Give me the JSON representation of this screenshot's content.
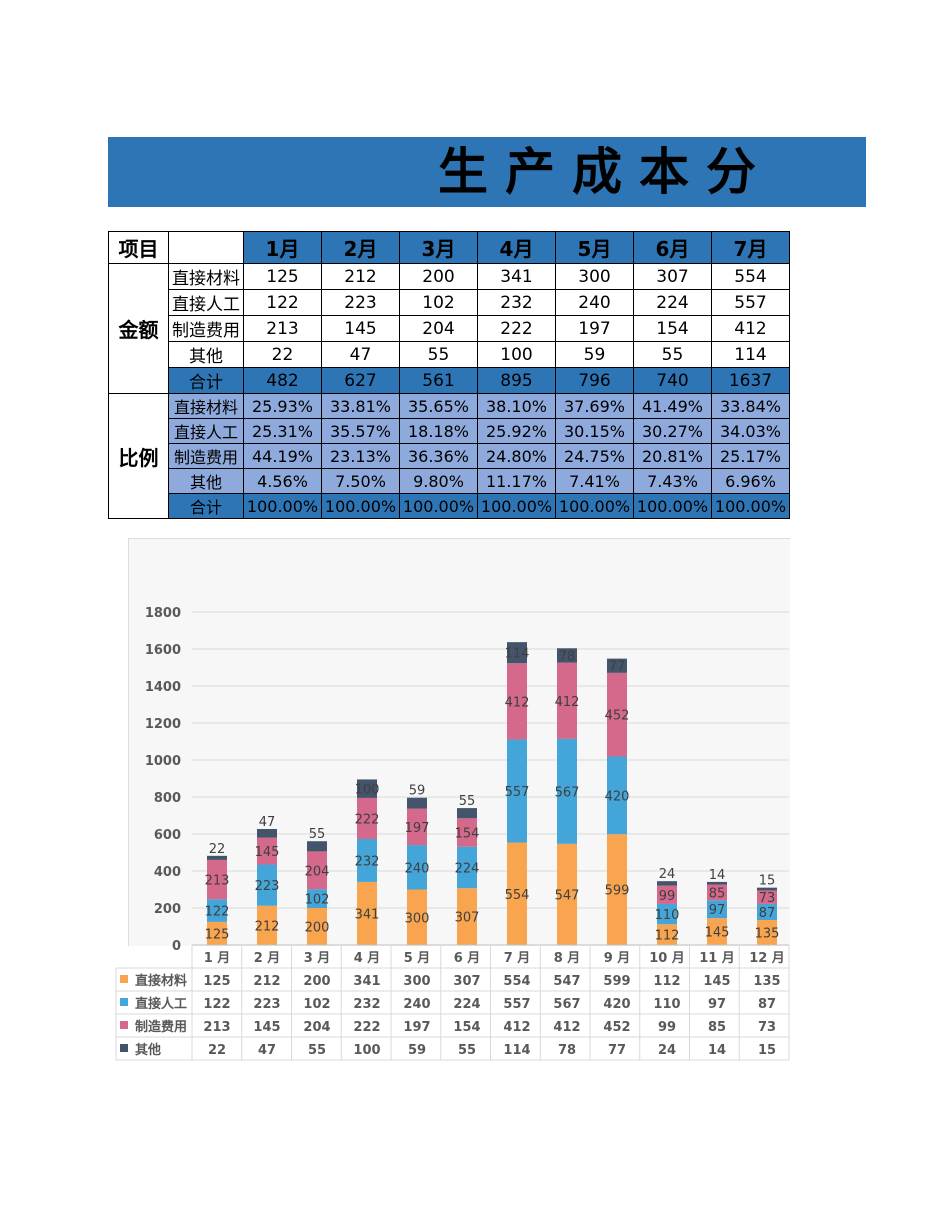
{
  "title": "生产成本分",
  "table": {
    "corner": "项目",
    "months": [
      "1月",
      "2月",
      "3月",
      "4月",
      "5月",
      "6月",
      "7月"
    ],
    "amount_group": "金额",
    "ratio_group": "比例",
    "amount_rows": [
      {
        "label": "直接材料",
        "values": [
          "125",
          "212",
          "200",
          "341",
          "300",
          "307",
          "554"
        ]
      },
      {
        "label": "直接人工",
        "values": [
          "122",
          "223",
          "102",
          "232",
          "240",
          "224",
          "557"
        ]
      },
      {
        "label": "制造费用",
        "values": [
          "213",
          "145",
          "204",
          "222",
          "197",
          "154",
          "412"
        ]
      },
      {
        "label": "其他",
        "values": [
          "22",
          "47",
          "55",
          "100",
          "59",
          "55",
          "114"
        ]
      },
      {
        "label": "合计",
        "values": [
          "482",
          "627",
          "561",
          "895",
          "796",
          "740",
          "1637"
        ]
      }
    ],
    "ratio_rows": [
      {
        "label": "直接材料",
        "values": [
          "25.93%",
          "33.81%",
          "35.65%",
          "38.10%",
          "37.69%",
          "41.49%",
          "33.84%"
        ]
      },
      {
        "label": "直接人工",
        "values": [
          "25.31%",
          "35.57%",
          "18.18%",
          "25.92%",
          "30.15%",
          "30.27%",
          "34.03%"
        ]
      },
      {
        "label": "制造费用",
        "values": [
          "44.19%",
          "23.13%",
          "36.36%",
          "24.80%",
          "24.75%",
          "20.81%",
          "25.17%"
        ]
      },
      {
        "label": "其他",
        "values": [
          "4.56%",
          "7.50%",
          "9.80%",
          "11.17%",
          "7.41%",
          "7.43%",
          "6.96%"
        ]
      },
      {
        "label": "合计",
        "values": [
          "100.00%",
          "100.00%",
          "100.00%",
          "100.00%",
          "100.00%",
          "100.00%",
          "100.00%"
        ]
      }
    ]
  },
  "chart_data": {
    "type": "bar",
    "stacked": true,
    "categories": [
      "1 月",
      "2 月",
      "3 月",
      "4 月",
      "5 月",
      "6 月",
      "7 月",
      "8 月",
      "9 月",
      "10 月",
      "11 月",
      "12 月"
    ],
    "series": [
      {
        "name": "直接材料",
        "color": "#F9A54F",
        "values": [
          125,
          212,
          200,
          341,
          300,
          307,
          554,
          547,
          599,
          112,
          145,
          135
        ]
      },
      {
        "name": "直接人工",
        "color": "#43A5D8",
        "values": [
          122,
          223,
          102,
          232,
          240,
          224,
          557,
          567,
          420,
          110,
          97,
          87
        ]
      },
      {
        "name": "制造费用",
        "color": "#D4698B",
        "values": [
          213,
          145,
          204,
          222,
          197,
          154,
          412,
          412,
          452,
          99,
          85,
          73
        ]
      },
      {
        "name": "其他",
        "color": "#44546A",
        "values": [
          22,
          47,
          55,
          100,
          59,
          55,
          114,
          78,
          77,
          24,
          14,
          15
        ]
      }
    ],
    "yticks": [
      0,
      200,
      400,
      600,
      800,
      1000,
      1200,
      1400,
      1600,
      1800
    ],
    "ylim": [
      0,
      1800
    ],
    "grid": true,
    "data_labels": true,
    "legend": "data-table-below"
  }
}
